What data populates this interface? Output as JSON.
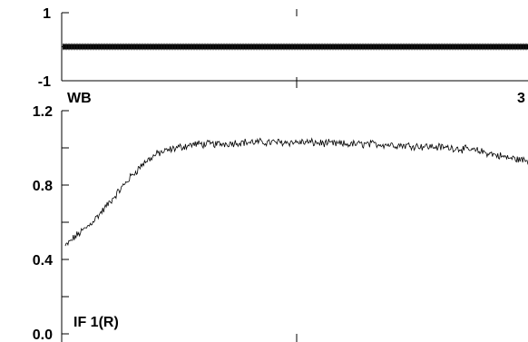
{
  "chart_data": [
    {
      "type": "scatter",
      "name_label": "",
      "ylim": [
        -1,
        1
      ],
      "yticks": [
        {
          "value": 1,
          "label": "1"
        },
        {
          "value": -1,
          "label": "-1"
        }
      ],
      "y_minor_ticks": [
        0
      ],
      "series": [
        {
          "values_constant": 0
        }
      ],
      "grid": false
    },
    {
      "type": "line",
      "name_label": "WB",
      "corner_label": "3",
      "ylim": [
        0.0,
        1.2
      ],
      "yticks": [
        {
          "value": 1.2,
          "label": "1.2"
        },
        {
          "value": 0.8,
          "label": "0.8"
        },
        {
          "value": 0.4,
          "label": "0.4"
        },
        {
          "value": 0.0,
          "label": "0.0"
        }
      ],
      "y_minor_ticks": [
        1.0,
        0.6,
        0.2
      ],
      "annotation": "IF 1(R)",
      "series": [
        {
          "x": [
            0,
            0.02,
            0.05,
            0.08,
            0.11,
            0.14,
            0.17,
            0.2,
            0.24,
            0.28,
            0.33,
            0.38,
            0.45,
            0.52,
            0.6,
            0.68,
            0.76,
            0.84,
            0.9,
            0.95,
            1.0
          ],
          "y": [
            0.47,
            0.52,
            0.58,
            0.66,
            0.75,
            0.84,
            0.92,
            0.97,
            1.0,
            1.02,
            1.02,
            1.03,
            1.03,
            1.03,
            1.02,
            1.02,
            1.01,
            1.0,
            0.98,
            0.95,
            0.93
          ]
        }
      ],
      "grid": false
    }
  ]
}
